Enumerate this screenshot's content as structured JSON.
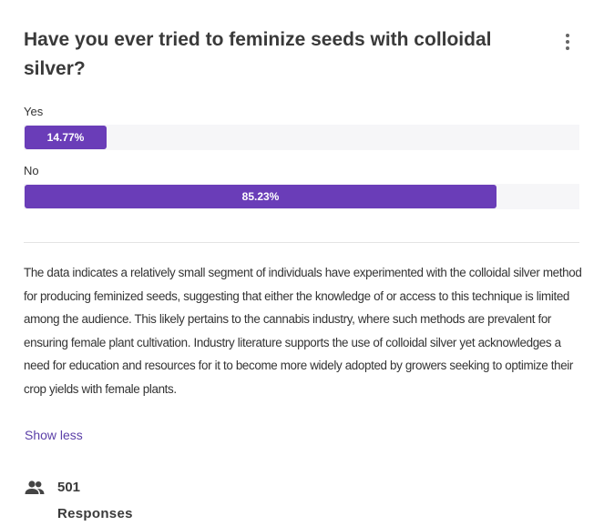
{
  "question": {
    "title": "Have you ever tried to feminize seeds with colloidal silver?",
    "menu_icon": "more-vert-icon"
  },
  "options": [
    {
      "label": "Yes",
      "percent_label": "14.77%",
      "percent": 14.77
    },
    {
      "label": "No",
      "percent_label": "85.23%",
      "percent": 85.23
    }
  ],
  "summary": {
    "text": "The data indicates a relatively small segment of individuals have experimented with the colloidal silver method for producing feminized seeds, suggesting that either the knowledge of or access to this technique is limited among the audience. This likely pertains to the cannabis industry, where such methods are prevalent for ensuring female plant cultivation. Industry literature supports the use of colloidal silver yet acknowledges a need for education and resources for it to become more widely adopted by growers seeking to optimize their crop yields with female plants.",
    "toggle_label": "Show less"
  },
  "responses": {
    "icon": "people-icon",
    "count": "501",
    "label": "Responses"
  },
  "colors": {
    "bar_fill": "#6a3db8",
    "bar_track": "#f6f6f8",
    "link": "#5b3fa8"
  },
  "chart_data": {
    "type": "bar",
    "orientation": "horizontal",
    "title": "Have you ever tried to feminize seeds with colloidal silver?",
    "categories": [
      "Yes",
      "No"
    ],
    "values": [
      14.77,
      85.23
    ],
    "value_labels": [
      "14.77%",
      "85.23%"
    ],
    "xlim": [
      0,
      100
    ],
    "unit": "%",
    "total_responses": 501
  }
}
